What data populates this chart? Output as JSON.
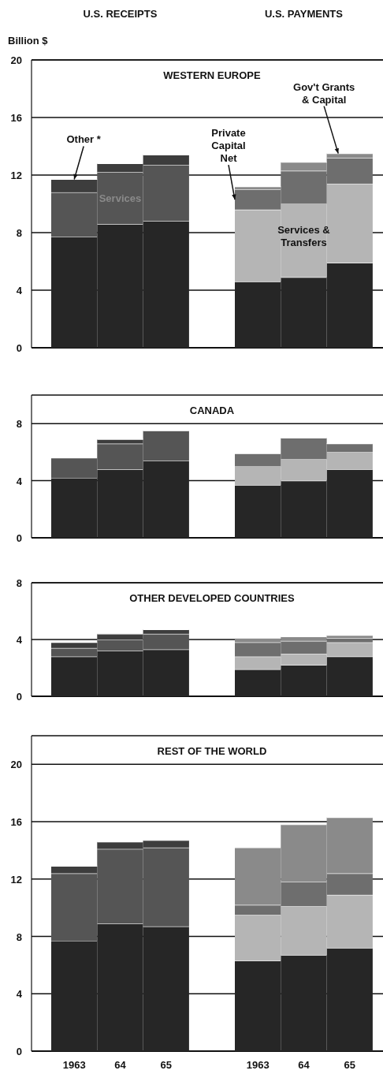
{
  "chart_data": [
    {
      "type": "bar",
      "stacked": true,
      "title": "WESTERN EUROPE",
      "ylabel": "Billion $",
      "annotations": [
        "U.S. RECEIPTS",
        "U.S. PAYMENTS"
      ],
      "categories": [
        null,
        null,
        null,
        null,
        null,
        null
      ],
      "ylim": [
        0,
        20
      ],
      "yticks": [
        0,
        4,
        8,
        12,
        16,
        20
      ],
      "grid": "y",
      "tick_labels": "y",
      "series": [
        {
          "color": "#262626",
          "values": [
            7.7,
            8.6,
            8.8,
            4.6,
            4.9,
            5.9
          ]
        },
        {
          "name": "Services",
          "color": "#555555",
          "values": [
            3.1,
            3.6,
            3.9,
            null,
            null,
            null
          ]
        },
        {
          "name": "Other *",
          "color": "#3d3d3d",
          "values": [
            0.9,
            0.6,
            0.7,
            null,
            null,
            null
          ]
        },
        {
          "name": "Services & Transfers",
          "color": "#b5b5b5",
          "values": [
            null,
            null,
            null,
            5.0,
            5.1,
            5.5
          ]
        },
        {
          "name": "Private Capital Net",
          "color": "#6e6e6e",
          "values": [
            null,
            null,
            null,
            1.4,
            2.3,
            1.8
          ]
        },
        {
          "name": "Gov't Grants & Capital",
          "color": "#8a8a8a",
          "values": [
            null,
            null,
            null,
            0.2,
            0.6,
            0.3
          ]
        }
      ]
    },
    {
      "type": "bar",
      "stacked": true,
      "title": "CANADA",
      "categories": [
        null,
        null,
        null,
        null,
        null,
        null
      ],
      "ylim": [
        0,
        10
      ],
      "yticks": [
        0,
        4,
        8
      ],
      "grid": "y",
      "tick_labels": "y",
      "series": [
        {
          "color": "#262626",
          "values": [
            4.2,
            4.8,
            5.4,
            3.7,
            4.0,
            4.8
          ]
        },
        {
          "color": "#555555",
          "values": [
            1.4,
            1.8,
            2.1,
            null,
            null,
            null
          ]
        },
        {
          "color": "#3d3d3d",
          "values": [
            null,
            0.3,
            null,
            null,
            null,
            null
          ]
        },
        {
          "color": "#b5b5b5",
          "values": [
            null,
            null,
            null,
            1.3,
            1.5,
            1.2
          ]
        },
        {
          "color": "#6e6e6e",
          "values": [
            null,
            null,
            null,
            0.9,
            1.5,
            0.6
          ]
        }
      ]
    },
    {
      "type": "bar",
      "stacked": true,
      "title": "OTHER DEVELOPED COUNTRIES",
      "categories": [
        null,
        null,
        null,
        null,
        null,
        null
      ],
      "ylim": [
        0,
        8
      ],
      "yticks": [
        0,
        4,
        8
      ],
      "grid": "y",
      "tick_labels": "y",
      "series": [
        {
          "color": "#262626",
          "values": [
            2.8,
            3.2,
            3.3,
            1.9,
            2.2,
            2.8
          ]
        },
        {
          "color": "#555555",
          "values": [
            0.6,
            0.8,
            1.1,
            null,
            null,
            null
          ]
        },
        {
          "color": "#3d3d3d",
          "values": [
            0.4,
            0.4,
            0.3,
            null,
            null,
            null
          ]
        },
        {
          "color": "#b5b5b5",
          "values": [
            null,
            null,
            null,
            0.9,
            0.8,
            1.0
          ]
        },
        {
          "color": "#6e6e6e",
          "values": [
            null,
            null,
            null,
            1.0,
            0.9,
            0.3
          ]
        },
        {
          "color": "#8a8a8a",
          "values": [
            null,
            null,
            null,
            0.3,
            0.3,
            0.2
          ]
        }
      ]
    },
    {
      "type": "bar",
      "stacked": true,
      "title": "REST OF THE WORLD",
      "categories": [
        "1963",
        "64",
        "65",
        "1963",
        "64",
        "65"
      ],
      "ylim": [
        0,
        22
      ],
      "yticks": [
        0,
        4,
        8,
        12,
        16,
        20
      ],
      "grid": "y",
      "series": [
        {
          "color": "#262626",
          "values": [
            7.7,
            8.9,
            8.7,
            6.3,
            6.7,
            7.2
          ]
        },
        {
          "color": "#555555",
          "values": [
            4.7,
            5.2,
            5.5,
            null,
            null,
            null
          ]
        },
        {
          "color": "#3d3d3d",
          "values": [
            0.5,
            0.5,
            0.5,
            null,
            null,
            null
          ]
        },
        {
          "color": "#b5b5b5",
          "values": [
            null,
            null,
            null,
            3.2,
            3.4,
            3.7
          ]
        },
        {
          "color": "#6e6e6e",
          "values": [
            null,
            null,
            null,
            0.7,
            1.7,
            1.5
          ]
        },
        {
          "color": "#8a8a8a",
          "values": [
            null,
            null,
            null,
            4.0,
            4.0,
            3.9
          ]
        }
      ]
    }
  ]
}
